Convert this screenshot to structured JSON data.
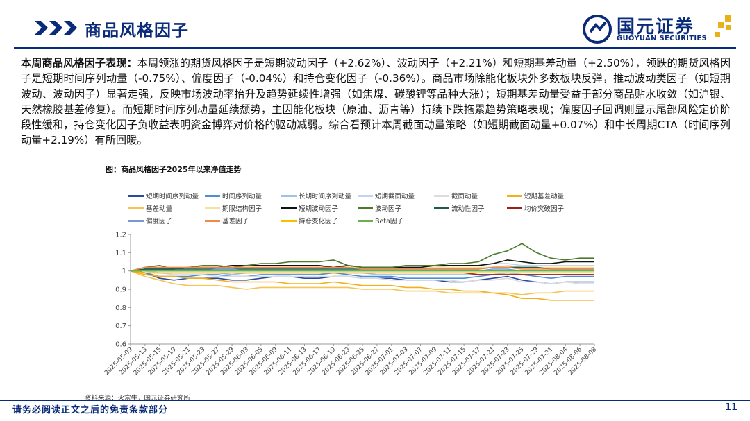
{
  "header": {
    "title": "商品风格因子",
    "logo_cn": "国元证券",
    "logo_en": "GUOYUAN SECURITIES"
  },
  "body": {
    "lead": "本周商品风格因子表现：",
    "text": "本周领涨的期货风格因子是短期波动因子（+2.62%）、波动因子（+2.21%）和短期基差动量（+2.50%），领跌的期货风格因子是短期时间序列动量（-0.75%）、偏度因子（-0.04%）和持仓变化因子（-0.36%）。商品市场除能化板块外多数板块反弹，推动波动类因子（如短期波动、波动因子）显著走强，反映市场波动率抬升及趋势延续性增强（如焦煤、碳酸锂等品种大涨）；短期基差动量受益于部分商品贴水收敛（如沪银、天然橡胶基差修复）。而短期时间序列动量延续颓势，主因能化板块（原油、沥青等）持续下跌拖累趋势策略表现；偏度因子回调则显示尾部风险定价阶段性缓和，持仓变化因子负收益表明资金博弈对价格的驱动减弱。综合看预计本周截面动量策略（如短期截面动量+0.07%）和中长周期CTA（时间序列动量+2.19%）有所回暖。"
  },
  "figure": {
    "title": "图：商品风格因子2025年以来净值走势",
    "source": "资料来源：火富牛，国元证券研究所"
  },
  "footer": {
    "note": "请务必阅读正文之后的免责条款部分",
    "page": "11"
  },
  "chart_data": {
    "type": "line",
    "title": "",
    "xlabel": "",
    "ylabel": "",
    "ylim": [
      0.6,
      1.2
    ],
    "yticks": [
      0.6,
      0.7,
      0.8,
      0.9,
      1,
      1.1,
      1.2
    ],
    "legend_position": "top",
    "grid": false,
    "categories": [
      "2025-05-09",
      "2025-05-13",
      "2025-05-15",
      "2025-05-19",
      "2025-05-21",
      "2025-05-23",
      "2025-05-27",
      "2025-05-29",
      "2025-06-03",
      "2025-06-05",
      "2025-06-09",
      "2025-06-11",
      "2025-06-13",
      "2025-06-17",
      "2025-06-19",
      "2025-06-23",
      "2025-06-25",
      "2025-06-27",
      "2025-07-01",
      "2025-07-03",
      "2025-07-07",
      "2025-07-09",
      "2025-07-11",
      "2025-07-15",
      "2025-07-17",
      "2025-07-21",
      "2025-07-23",
      "2025-07-25",
      "2025-07-29",
      "2025-07-31",
      "2025-08-04",
      "2025-08-06",
      "2025-08-08"
    ],
    "series": [
      {
        "name": "短期时间序列动量",
        "color": "#2b4aa0",
        "values": [
          1,
          0.99,
          0.96,
          0.95,
          0.96,
          0.96,
          0.96,
          0.95,
          0.95,
          0.96,
          0.97,
          0.97,
          0.96,
          0.96,
          0.97,
          0.97,
          0.96,
          0.96,
          0.96,
          0.95,
          0.95,
          0.95,
          0.94,
          0.94,
          0.95,
          0.96,
          0.97,
          0.95,
          0.94,
          0.93,
          0.94,
          0.94,
          0.94
        ]
      },
      {
        "name": "时间序列动量",
        "color": "#4a8fd8",
        "values": [
          1,
          0.99,
          0.97,
          0.97,
          0.97,
          0.98,
          0.98,
          0.97,
          0.97,
          0.98,
          0.98,
          0.98,
          0.98,
          0.98,
          0.99,
          0.98,
          0.97,
          0.97,
          0.97,
          0.96,
          0.96,
          0.96,
          0.96,
          0.96,
          0.97,
          0.98,
          0.99,
          0.98,
          0.97,
          0.96,
          0.97,
          0.97,
          0.97
        ]
      },
      {
        "name": "长期时间序列动量",
        "color": "#9ec2ea",
        "values": [
          1,
          1,
          0.99,
          0.99,
          0.99,
          0.99,
          0.99,
          0.98,
          0.99,
          0.99,
          0.99,
          0.99,
          0.99,
          0.99,
          0.99,
          0.99,
          0.99,
          0.98,
          0.98,
          0.98,
          0.98,
          0.98,
          0.98,
          0.98,
          0.98,
          0.98,
          0.99,
          0.98,
          0.98,
          0.98,
          0.98,
          0.98,
          0.98
        ]
      },
      {
        "name": "短期截面动量",
        "color": "#c4d4ea",
        "values": [
          1,
          1.01,
          1.01,
          1.01,
          1.01,
          1.02,
          1.02,
          1.01,
          1.01,
          1.02,
          1.02,
          1.02,
          1.02,
          1.02,
          1.02,
          1.03,
          1.02,
          1.02,
          1.02,
          1.02,
          1.02,
          1.02,
          1.03,
          1.03,
          1.03,
          1.04,
          1.04,
          1.03,
          1.03,
          1.03,
          1.03,
          1.03,
          1.03
        ]
      },
      {
        "name": "截面动量",
        "color": "#dcdcdc",
        "values": [
          1,
          1,
          0.99,
          0.98,
          0.98,
          0.98,
          0.97,
          0.97,
          0.97,
          0.97,
          0.97,
          0.97,
          0.97,
          0.97,
          0.97,
          0.97,
          0.96,
          0.96,
          0.95,
          0.95,
          0.95,
          0.95,
          0.95,
          0.94,
          0.95,
          0.95,
          0.96,
          0.94,
          0.94,
          0.93,
          0.94,
          0.93,
          0.93
        ]
      },
      {
        "name": "短期基差动量",
        "color": "#f2b01e",
        "values": [
          1,
          0.98,
          0.97,
          0.97,
          0.96,
          0.96,
          0.95,
          0.94,
          0.94,
          0.94,
          0.94,
          0.93,
          0.93,
          0.93,
          0.94,
          0.93,
          0.92,
          0.92,
          0.92,
          0.91,
          0.91,
          0.9,
          0.9,
          0.89,
          0.89,
          0.88,
          0.87,
          0.85,
          0.85,
          0.84,
          0.84,
          0.84,
          0.84
        ]
      },
      {
        "name": "基差动量",
        "color": "#f5c453",
        "values": [
          1,
          0.97,
          0.95,
          0.93,
          0.92,
          0.92,
          0.92,
          0.91,
          0.9,
          0.91,
          0.91,
          0.91,
          0.91,
          0.91,
          0.91,
          0.91,
          0.9,
          0.9,
          0.9,
          0.89,
          0.89,
          0.89,
          0.88,
          0.88,
          0.88,
          0.88,
          0.88,
          0.87,
          0.88,
          0.88,
          0.89,
          0.89,
          0.89
        ]
      },
      {
        "name": "期限结构因子",
        "color": "#f7dfa0",
        "values": [
          1,
          1,
          1,
          1,
          1,
          1.01,
          1.01,
          1.01,
          1.01,
          1.01,
          1.01,
          1.01,
          1.01,
          1.01,
          1.02,
          1.02,
          1.02,
          1.02,
          1.02,
          1.02,
          1.02,
          1.02,
          1.02,
          1.02,
          1.02,
          1.02,
          1.03,
          1.02,
          1.02,
          1.02,
          1.02,
          1.02,
          1.02
        ]
      },
      {
        "name": "短期波动因子",
        "color": "#111111",
        "values": [
          1,
          1.01,
          1.01,
          1.01,
          1.02,
          1.02,
          1.02,
          1.03,
          1.03,
          1.03,
          1.03,
          1.03,
          1.03,
          1.03,
          1.02,
          1.03,
          1.02,
          1.02,
          1.02,
          1.02,
          1.02,
          1.03,
          1.03,
          1.03,
          1.03,
          1.04,
          1.06,
          1.05,
          1.04,
          1.04,
          1.05,
          1.05,
          1.05
        ]
      },
      {
        "name": "波动因子",
        "color": "#4a7a2a",
        "values": [
          1,
          1.02,
          1.03,
          1.01,
          1.02,
          1.03,
          1.03,
          1.02,
          1.03,
          1.04,
          1.04,
          1.05,
          1.05,
          1.05,
          1.06,
          1.03,
          1.02,
          1.02,
          1.02,
          1.03,
          1.03,
          1.03,
          1.04,
          1.04,
          1.05,
          1.09,
          1.11,
          1.15,
          1.1,
          1.07,
          1.06,
          1.07,
          1.07
        ]
      },
      {
        "name": "流动性因子",
        "color": "#1f5a4a",
        "values": [
          1,
          1.01,
          1.01,
          1.01,
          1.01,
          1.01,
          1.01,
          1.01,
          1.01,
          1.01,
          1.01,
          1.01,
          1.01,
          1.01,
          1.01,
          1.01,
          1.01,
          1.01,
          1.01,
          1.01,
          1.01,
          1.01,
          1.01,
          1.01,
          1.01,
          1.02,
          1.02,
          1.02,
          1.02,
          1.01,
          1.01,
          1.01,
          1.01
        ]
      },
      {
        "name": "均价突破因子",
        "color": "#9a1f1f",
        "values": [
          1,
          0.99,
          0.99,
          0.99,
          0.99,
          0.99,
          0.99,
          0.99,
          0.99,
          0.99,
          0.99,
          0.99,
          0.99,
          0.99,
          0.99,
          0.99,
          0.99,
          0.99,
          0.99,
          0.99,
          0.99,
          0.99,
          0.99,
          0.99,
          0.98,
          0.98,
          0.98,
          0.98,
          0.98,
          0.98,
          0.98,
          0.98,
          0.98
        ]
      },
      {
        "name": "偏度因子",
        "color": "#7a9acf",
        "values": [
          1,
          1,
          1,
          1,
          1,
          1,
          1.01,
          1.01,
          1,
          1,
          1,
          1,
          1,
          1,
          1,
          1,
          1,
          1,
          1,
          1,
          1,
          1,
          1,
          1,
          1,
          1.01,
          1.01,
          1,
          1,
          1,
          1,
          1,
          1
        ]
      },
      {
        "name": "基差因子",
        "color": "#ef8a4a",
        "values": [
          1,
          1.02,
          1.02,
          1.02,
          1.02,
          1.02,
          1.02,
          1.02,
          1.02,
          1.02,
          1.02,
          1.02,
          1.02,
          1.02,
          1.02,
          1.02,
          1.01,
          1.01,
          1.01,
          1.01,
          1.01,
          1.01,
          1.01,
          1.01,
          1.01,
          1.02,
          1.02,
          1.01,
          1.01,
          1.01,
          1.01,
          1.01,
          1.01
        ]
      },
      {
        "name": "持仓变化因子",
        "color": "#f4c000",
        "values": [
          1,
          0.99,
          0.99,
          0.99,
          0.99,
          0.99,
          0.99,
          0.99,
          0.99,
          0.99,
          0.99,
          0.99,
          0.99,
          0.99,
          0.99,
          0.99,
          0.99,
          0.99,
          0.99,
          0.99,
          0.99,
          0.99,
          0.99,
          0.99,
          0.99,
          0.99,
          0.99,
          0.99,
          0.99,
          0.99,
          0.99,
          0.99,
          0.99
        ]
      },
      {
        "name": "Beta因子",
        "color": "#6ab04c",
        "values": [
          1,
          1,
          1,
          1,
          1,
          1,
          1,
          1,
          1,
          1,
          1,
          1,
          1,
          1,
          1,
          1,
          1,
          1,
          1,
          1,
          1,
          1,
          1,
          1,
          1,
          1,
          1,
          1,
          1,
          1,
          1,
          1,
          1
        ]
      }
    ]
  }
}
